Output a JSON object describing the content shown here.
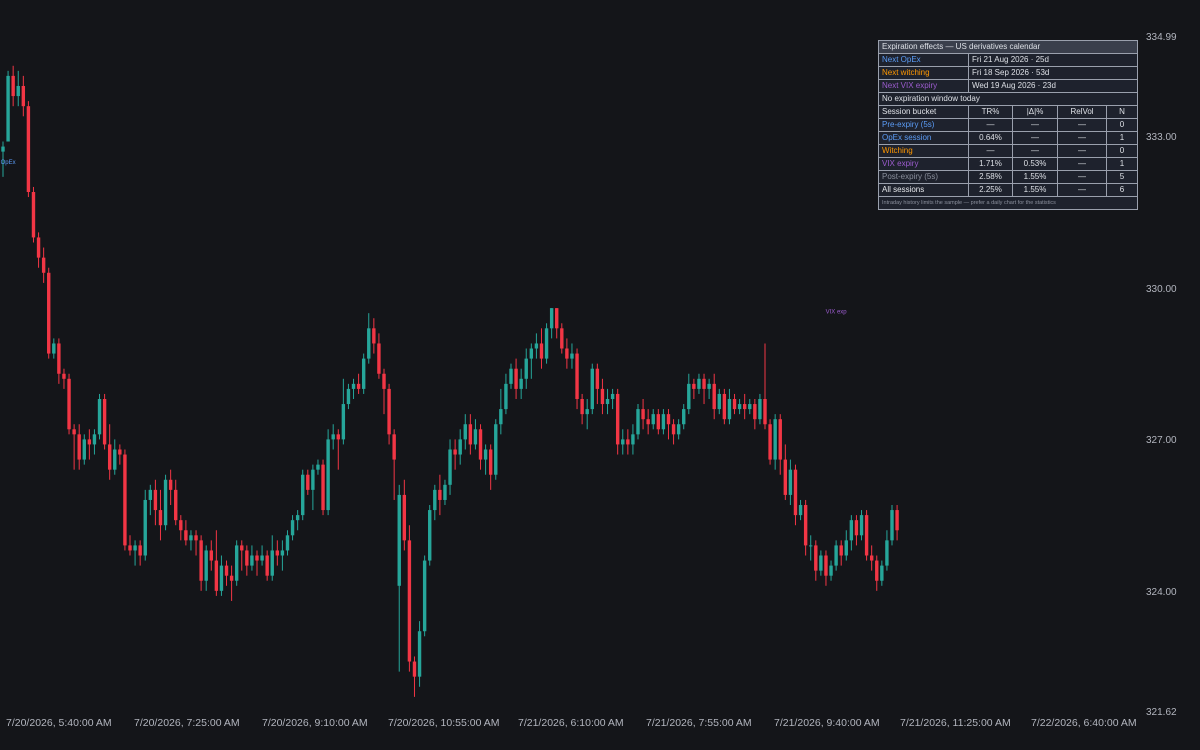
{
  "chart_data": {
    "type": "candlestick",
    "ylim": [
      321.62,
      334.99
    ],
    "y_axis_ticks": [
      "334.99",
      "333.00",
      "330.00",
      "327.00",
      "324.00",
      "321.62"
    ],
    "x_axis_ticks": [
      "7/20/2026, 5:40:00 AM",
      "7/20/2026, 7:25:00 AM",
      "7/20/2026, 9:10:00 AM",
      "7/20/2026, 10:55:00 AM",
      "7/21/2026, 6:10:00 AM",
      "7/21/2026, 7:55:00 AM",
      "7/21/2026, 9:40:00 AM",
      "7/21/2026, 11:25:00 AM",
      "7/22/2026, 6:40:00 AM"
    ],
    "colors": {
      "up": "#26a69a",
      "down": "#f23645",
      "opex": "#5b9cf6",
      "witching": "#ff9800",
      "vix": "#9c5ccf"
    },
    "candles": [
      [
        332.7,
        332.8,
        332.2,
        332.9
      ],
      [
        332.9,
        334.2,
        332.9,
        334.3
      ],
      [
        334.2,
        333.8,
        333.6,
        334.4
      ],
      [
        333.8,
        334.0,
        333.6,
        334.3
      ],
      [
        334.0,
        333.6,
        333.4,
        334.2
      ],
      [
        333.6,
        331.9,
        331.8,
        333.7
      ],
      [
        331.9,
        331.0,
        330.9,
        332.0
      ],
      [
        331.0,
        330.6,
        330.4,
        331.1
      ],
      [
        330.6,
        330.3,
        330.1,
        330.8
      ],
      [
        330.3,
        328.7,
        328.6,
        330.4
      ],
      [
        328.7,
        328.9,
        328.6,
        329.0
      ],
      [
        328.9,
        328.3,
        328.1,
        329.0
      ],
      [
        328.3,
        328.2,
        328.0,
        328.4
      ],
      [
        328.2,
        327.2,
        327.1,
        328.3
      ],
      [
        327.2,
        327.1,
        326.4,
        327.3
      ],
      [
        327.1,
        326.6,
        326.4,
        327.3
      ],
      [
        326.6,
        327.0,
        326.5,
        327.1
      ],
      [
        327.0,
        326.9,
        326.6,
        327.2
      ],
      [
        326.9,
        327.1,
        326.7,
        327.2
      ],
      [
        327.1,
        327.8,
        327.0,
        327.9
      ],
      [
        327.8,
        326.9,
        326.8,
        327.9
      ],
      [
        326.9,
        326.4,
        326.2,
        327.3
      ],
      [
        326.4,
        326.8,
        326.3,
        327.0
      ],
      [
        326.8,
        326.7,
        326.5,
        326.9
      ],
      [
        326.7,
        324.9,
        324.8,
        326.8
      ],
      [
        324.9,
        324.8,
        324.7,
        325.1
      ],
      [
        324.8,
        324.9,
        324.5,
        325.0
      ],
      [
        324.9,
        324.7,
        324.5,
        325.0
      ],
      [
        324.7,
        325.8,
        324.6,
        326.0
      ],
      [
        325.8,
        326.0,
        325.5,
        326.1
      ],
      [
        326.0,
        325.6,
        325.3,
        326.2
      ],
      [
        325.6,
        325.3,
        325.0,
        326.0
      ],
      [
        325.3,
        326.2,
        325.2,
        326.3
      ],
      [
        326.2,
        326.0,
        325.7,
        326.4
      ],
      [
        326.0,
        325.4,
        325.3,
        326.2
      ],
      [
        325.4,
        325.2,
        325.0,
        325.5
      ],
      [
        325.2,
        325.0,
        324.9,
        325.4
      ],
      [
        325.0,
        325.1,
        324.8,
        325.2
      ],
      [
        325.1,
        325.0,
        324.7,
        325.2
      ],
      [
        325.0,
        324.2,
        324.0,
        325.1
      ],
      [
        324.2,
        324.8,
        324.0,
        324.9
      ],
      [
        324.8,
        324.6,
        324.4,
        325.0
      ],
      [
        324.6,
        324.0,
        323.9,
        325.2
      ],
      [
        324.0,
        324.5,
        323.9,
        324.7
      ],
      [
        324.5,
        324.3,
        324.1,
        324.6
      ],
      [
        324.3,
        324.2,
        323.8,
        324.5
      ],
      [
        324.2,
        324.9,
        324.1,
        325.0
      ],
      [
        324.9,
        324.8,
        324.4,
        325.0
      ],
      [
        324.8,
        324.5,
        324.3,
        324.9
      ],
      [
        324.5,
        324.7,
        324.4,
        324.9
      ],
      [
        324.7,
        324.6,
        324.3,
        324.8
      ],
      [
        324.6,
        324.7,
        324.5,
        324.9
      ],
      [
        324.7,
        324.3,
        324.2,
        324.8
      ],
      [
        324.3,
        324.8,
        324.2,
        325.1
      ],
      [
        324.8,
        324.7,
        324.5,
        325.0
      ],
      [
        324.7,
        324.8,
        324.4,
        325.0
      ],
      [
        324.8,
        325.1,
        324.7,
        325.2
      ],
      [
        325.1,
        325.4,
        325.0,
        325.5
      ],
      [
        325.4,
        325.5,
        325.2,
        325.6
      ],
      [
        325.5,
        326.3,
        325.4,
        326.4
      ],
      [
        326.3,
        326.0,
        325.9,
        326.4
      ],
      [
        326.0,
        326.4,
        325.6,
        326.5
      ],
      [
        326.4,
        326.5,
        326.3,
        326.6
      ],
      [
        326.5,
        325.6,
        325.5,
        326.6
      ],
      [
        325.6,
        327.0,
        325.5,
        327.2
      ],
      [
        327.0,
        327.1,
        326.8,
        327.3
      ],
      [
        327.1,
        327.0,
        326.4,
        327.2
      ],
      [
        327.0,
        327.7,
        326.9,
        328.2
      ],
      [
        327.7,
        328.0,
        327.6,
        328.1
      ],
      [
        328.0,
        328.1,
        327.8,
        328.2
      ],
      [
        328.1,
        328.0,
        327.9,
        328.3
      ],
      [
        328.0,
        328.6,
        327.9,
        328.7
      ],
      [
        328.6,
        329.2,
        328.5,
        329.5
      ],
      [
        329.2,
        328.9,
        328.7,
        329.4
      ],
      [
        328.9,
        328.3,
        328.2,
        329.1
      ],
      [
        328.3,
        328.0,
        327.5,
        328.4
      ],
      [
        328.0,
        327.1,
        326.9,
        328.1
      ],
      [
        327.1,
        326.6,
        325.8,
        327.2
      ],
      [
        324.1,
        325.9,
        322.4,
        326.1
      ],
      [
        325.9,
        325.0,
        324.8,
        326.2
      ],
      [
        325.0,
        322.6,
        322.4,
        325.3
      ],
      [
        322.6,
        322.3,
        321.9,
        322.7
      ],
      [
        322.3,
        323.2,
        322.1,
        323.4
      ],
      [
        323.2,
        324.6,
        323.1,
        324.7
      ],
      [
        324.6,
        325.6,
        324.5,
        325.7
      ],
      [
        325.6,
        326.0,
        325.4,
        326.1
      ],
      [
        326.0,
        325.8,
        325.5,
        326.3
      ],
      [
        325.8,
        326.1,
        325.7,
        326.2
      ],
      [
        326.1,
        326.8,
        325.9,
        327.0
      ],
      [
        326.8,
        326.7,
        326.4,
        327.0
      ],
      [
        326.7,
        327.0,
        326.5,
        327.2
      ],
      [
        327.0,
        327.3,
        326.8,
        327.5
      ],
      [
        327.3,
        326.9,
        326.7,
        327.5
      ],
      [
        326.9,
        327.2,
        326.8,
        327.4
      ],
      [
        327.2,
        326.6,
        326.4,
        327.3
      ],
      [
        326.6,
        326.8,
        326.3,
        326.9
      ],
      [
        326.8,
        326.3,
        326.0,
        326.9
      ],
      [
        326.3,
        327.3,
        326.2,
        327.4
      ],
      [
        327.3,
        327.6,
        327.1,
        328.0
      ],
      [
        327.6,
        328.1,
        327.5,
        328.3
      ],
      [
        328.1,
        328.4,
        328.0,
        328.5
      ],
      [
        328.4,
        328.0,
        327.8,
        328.6
      ],
      [
        328.0,
        328.2,
        327.8,
        328.4
      ],
      [
        328.2,
        328.6,
        328.0,
        328.8
      ],
      [
        328.6,
        328.8,
        328.2,
        328.9
      ],
      [
        328.8,
        328.9,
        328.6,
        329.1
      ],
      [
        328.9,
        328.6,
        328.4,
        329.2
      ],
      [
        328.6,
        329.2,
        328.5,
        329.3
      ],
      [
        329.2,
        329.6,
        329.0,
        329.6
      ],
      [
        329.6,
        329.2,
        329.0,
        329.6
      ],
      [
        329.2,
        328.8,
        328.7,
        329.3
      ],
      [
        328.8,
        328.6,
        328.4,
        329.0
      ],
      [
        328.6,
        328.7,
        328.4,
        328.9
      ],
      [
        328.7,
        327.8,
        327.6,
        328.8
      ],
      [
        327.8,
        327.5,
        327.3,
        327.9
      ],
      [
        327.5,
        327.6,
        327.2,
        327.8
      ],
      [
        327.6,
        328.4,
        327.5,
        328.5
      ],
      [
        328.4,
        328.0,
        327.7,
        328.5
      ],
      [
        328.0,
        327.7,
        327.5,
        328.2
      ],
      [
        327.7,
        327.8,
        327.5,
        328.0
      ],
      [
        327.8,
        327.9,
        327.6,
        328.0
      ],
      [
        327.9,
        326.9,
        326.7,
        328.0
      ],
      [
        326.9,
        327.0,
        326.7,
        327.2
      ],
      [
        327.0,
        326.9,
        326.7,
        327.2
      ],
      [
        326.9,
        327.1,
        326.7,
        327.3
      ],
      [
        327.1,
        327.6,
        327.0,
        327.7
      ],
      [
        327.6,
        327.4,
        327.2,
        327.8
      ],
      [
        327.4,
        327.3,
        327.1,
        327.6
      ],
      [
        327.3,
        327.5,
        327.2,
        327.6
      ],
      [
        327.5,
        327.2,
        327.1,
        327.6
      ],
      [
        327.2,
        327.5,
        327.1,
        327.6
      ],
      [
        327.5,
        327.3,
        327.0,
        327.6
      ],
      [
        327.3,
        327.1,
        326.9,
        327.4
      ],
      [
        327.1,
        327.3,
        327.0,
        327.4
      ],
      [
        327.3,
        327.6,
        327.2,
        327.7
      ],
      [
        327.6,
        328.1,
        327.5,
        328.3
      ],
      [
        328.1,
        328.0,
        327.8,
        328.2
      ],
      [
        328.0,
        328.2,
        327.9,
        328.3
      ],
      [
        328.2,
        328.0,
        327.7,
        328.3
      ],
      [
        328.0,
        328.1,
        327.8,
        328.2
      ],
      [
        328.1,
        327.6,
        327.4,
        328.3
      ],
      [
        327.6,
        327.9,
        327.5,
        328.0
      ],
      [
        327.9,
        327.4,
        327.3,
        328.0
      ],
      [
        327.4,
        327.8,
        327.3,
        328.0
      ],
      [
        327.8,
        327.6,
        327.5,
        327.9
      ],
      [
        327.6,
        327.7,
        327.5,
        327.8
      ],
      [
        327.7,
        327.6,
        327.4,
        327.9
      ],
      [
        327.6,
        327.7,
        327.5,
        327.8
      ],
      [
        327.7,
        327.4,
        327.2,
        327.8
      ],
      [
        327.4,
        327.8,
        327.3,
        327.9
      ],
      [
        327.8,
        327.3,
        327.2,
        328.9
      ],
      [
        327.3,
        326.6,
        326.5,
        327.4
      ],
      [
        326.6,
        327.4,
        326.4,
        327.5
      ],
      [
        327.4,
        326.6,
        326.3,
        327.5
      ],
      [
        326.6,
        325.9,
        325.8,
        326.9
      ],
      [
        325.9,
        326.4,
        325.7,
        326.6
      ],
      [
        326.4,
        325.5,
        325.3,
        326.5
      ],
      [
        325.5,
        325.7,
        325.4,
        325.8
      ],
      [
        325.7,
        324.9,
        324.7,
        325.8
      ],
      [
        324.9,
        324.9,
        324.6,
        325.1
      ],
      [
        324.9,
        324.4,
        324.2,
        325.0
      ],
      [
        324.4,
        324.7,
        324.3,
        324.8
      ],
      [
        324.7,
        324.3,
        324.1,
        324.8
      ],
      [
        324.3,
        324.5,
        324.2,
        324.6
      ],
      [
        324.5,
        324.9,
        324.4,
        325.0
      ],
      [
        324.9,
        324.7,
        324.5,
        325.0
      ],
      [
        324.7,
        325.0,
        324.6,
        325.2
      ],
      [
        325.0,
        325.4,
        324.8,
        325.5
      ],
      [
        325.4,
        325.1,
        324.9,
        325.5
      ],
      [
        325.1,
        325.5,
        325.0,
        325.6
      ],
      [
        325.5,
        324.7,
        324.6,
        325.6
      ],
      [
        324.7,
        324.6,
        324.4,
        324.9
      ],
      [
        324.6,
        324.2,
        324.0,
        324.7
      ],
      [
        324.2,
        324.5,
        324.1,
        324.6
      ],
      [
        324.5,
        325.0,
        324.4,
        325.2
      ],
      [
        325.0,
        325.6,
        324.9,
        325.7
      ],
      [
        325.6,
        325.2,
        325.0,
        325.7
      ]
    ],
    "markers": [
      {
        "label": "OpEx",
        "candle_index": 1,
        "price": 332.45,
        "color": "opex"
      },
      {
        "label": "VIX exp",
        "candle_index": 164,
        "price": 329.49,
        "color": "vix"
      }
    ]
  },
  "table": {
    "title": "Expiration effects — US derivatives calendar",
    "next": [
      {
        "label": "Next OpEx",
        "value": "Fri 21 Aug 2026 · 25d",
        "color": "#5b9cf6"
      },
      {
        "label": "Next witching",
        "value": "Fri 18 Sep 2026 · 53d",
        "color": "#ff9800"
      },
      {
        "label": "Next VIX expiry",
        "value": "Wed 19 Aug 2026 · 23d",
        "color": "#9c5ccf"
      }
    ],
    "window_status": "No expiration window today",
    "headers": [
      "Session bucket",
      "TR%",
      "|Δ|%",
      "RelVol",
      "N"
    ],
    "rows": [
      {
        "bucket": "Pre-expiry (5s)",
        "tr": "—",
        "delta": "—",
        "relvol": "—",
        "n": "0",
        "color": "#5b9cf6"
      },
      {
        "bucket": "OpEx session",
        "tr": "0.64%",
        "delta": "—",
        "relvol": "—",
        "n": "1",
        "color": "#5b9cf6"
      },
      {
        "bucket": "Witching",
        "tr": "—",
        "delta": "—",
        "relvol": "—",
        "n": "0",
        "color": "#ff9800"
      },
      {
        "bucket": "VIX expiry",
        "tr": "1.71%",
        "delta": "0.53%",
        "relvol": "—",
        "n": "1",
        "color": "#9c5ccf"
      },
      {
        "bucket": "Post-expiry (5s)",
        "tr": "2.58%",
        "delta": "1.55%",
        "relvol": "—",
        "n": "5",
        "color": "#8a8f9c"
      },
      {
        "bucket": "All sessions",
        "tr": "2.25%",
        "delta": "1.55%",
        "relvol": "—",
        "n": "6",
        "color": "#e6e8ec"
      }
    ],
    "footnote": "Intraday history limits the sample — prefer a daily chart for the statistics"
  }
}
